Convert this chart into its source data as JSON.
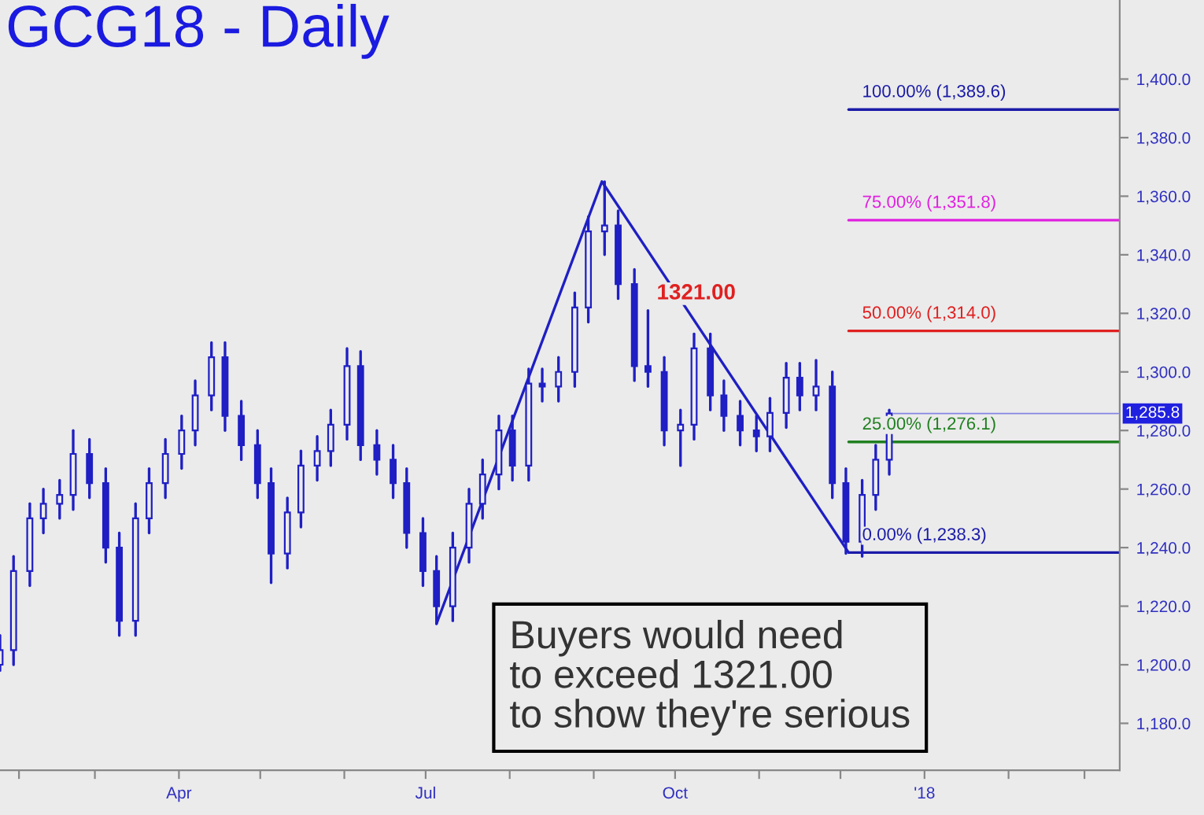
{
  "chart_data": {
    "type": "candlestick",
    "title": "GCG18 - Daily",
    "x": [
      "2017-01-25",
      "2017-01-30",
      "2017-02-05",
      "2017-02-10",
      "2017-02-16",
      "2017-02-21",
      "2017-02-27",
      "2017-03-05",
      "2017-03-10",
      "2017-03-16",
      "2017-03-21",
      "2017-03-27",
      "2017-04-02",
      "2017-04-07",
      "2017-04-13",
      "2017-04-18",
      "2017-04-24",
      "2017-04-30",
      "2017-05-05",
      "2017-05-11",
      "2017-05-16",
      "2017-05-22",
      "2017-05-27",
      "2017-06-02",
      "2017-06-07",
      "2017-06-13",
      "2017-06-19",
      "2017-06-24",
      "2017-06-30",
      "2017-07-05",
      "2017-07-11",
      "2017-07-17",
      "2017-07-22",
      "2017-07-28",
      "2017-08-02",
      "2017-08-08",
      "2017-08-13",
      "2017-08-19",
      "2017-08-25",
      "2017-08-30",
      "2017-09-05",
      "2017-09-10",
      "2017-09-16",
      "2017-09-21",
      "2017-09-27",
      "2017-10-03",
      "2017-10-08",
      "2017-10-14",
      "2017-10-19",
      "2017-10-25",
      "2017-10-31",
      "2017-11-05",
      "2017-11-11",
      "2017-11-16",
      "2017-11-22",
      "2017-11-28",
      "2017-12-03",
      "2017-12-09",
      "2017-12-14",
      "2017-12-19"
    ],
    "ohlc": [
      [
        1200,
        1210,
        1198,
        1205
      ],
      [
        1205,
        1237,
        1200,
        1232
      ],
      [
        1232,
        1255,
        1227,
        1250
      ],
      [
        1250,
        1260,
        1245,
        1255
      ],
      [
        1255,
        1263,
        1250,
        1258
      ],
      [
        1258,
        1280,
        1253,
        1272
      ],
      [
        1272,
        1277,
        1257,
        1262
      ],
      [
        1262,
        1267,
        1235,
        1240
      ],
      [
        1240,
        1245,
        1210,
        1215
      ],
      [
        1215,
        1255,
        1210,
        1250
      ],
      [
        1250,
        1267,
        1245,
        1262
      ],
      [
        1262,
        1277,
        1257,
        1272
      ],
      [
        1272,
        1285,
        1267,
        1280
      ],
      [
        1280,
        1297,
        1275,
        1292
      ],
      [
        1292,
        1310,
        1287,
        1305
      ],
      [
        1305,
        1310,
        1280,
        1285
      ],
      [
        1285,
        1290,
        1270,
        1275
      ],
      [
        1275,
        1280,
        1257,
        1262
      ],
      [
        1262,
        1267,
        1228,
        1238
      ],
      [
        1238,
        1257,
        1233,
        1252
      ],
      [
        1252,
        1273,
        1247,
        1268
      ],
      [
        1268,
        1278,
        1263,
        1273
      ],
      [
        1273,
        1287,
        1268,
        1282
      ],
      [
        1282,
        1308,
        1277,
        1302
      ],
      [
        1302,
        1307,
        1270,
        1275
      ],
      [
        1275,
        1280,
        1265,
        1270
      ],
      [
        1270,
        1275,
        1257,
        1262
      ],
      [
        1262,
        1267,
        1240,
        1245
      ],
      [
        1245,
        1250,
        1227,
        1232
      ],
      [
        1232,
        1237,
        1214,
        1220
      ],
      [
        1220,
        1245,
        1215,
        1240
      ],
      [
        1240,
        1260,
        1235,
        1255
      ],
      [
        1255,
        1270,
        1250,
        1265
      ],
      [
        1265,
        1285,
        1260,
        1280
      ],
      [
        1280,
        1285,
        1263,
        1268
      ],
      [
        1268,
        1301,
        1263,
        1296
      ],
      [
        1296,
        1301,
        1290,
        1295
      ],
      [
        1295,
        1305,
        1290,
        1300
      ],
      [
        1300,
        1327,
        1295,
        1322
      ],
      [
        1322,
        1353,
        1317,
        1348
      ],
      [
        1348,
        1365,
        1340,
        1350
      ],
      [
        1350,
        1355,
        1325,
        1330
      ],
      [
        1330,
        1335,
        1297,
        1302
      ],
      [
        1302,
        1321,
        1295,
        1300
      ],
      [
        1300,
        1305,
        1275,
        1280
      ],
      [
        1280,
        1287,
        1268,
        1282
      ],
      [
        1282,
        1313,
        1277,
        1308
      ],
      [
        1308,
        1313,
        1287,
        1292
      ],
      [
        1292,
        1297,
        1280,
        1285
      ],
      [
        1285,
        1290,
        1275,
        1280
      ],
      [
        1280,
        1285,
        1273,
        1278
      ],
      [
        1278,
        1291,
        1273,
        1286
      ],
      [
        1286,
        1303,
        1281,
        1298
      ],
      [
        1298,
        1303,
        1287,
        1292
      ],
      [
        1292,
        1304,
        1287,
        1295
      ],
      [
        1295,
        1300,
        1257,
        1262
      ],
      [
        1262,
        1267,
        1238,
        1242
      ],
      [
        1242,
        1263,
        1237,
        1258
      ],
      [
        1258,
        1275,
        1253,
        1270
      ],
      [
        1270,
        1287,
        1265,
        1285.8
      ]
    ],
    "color": "#1f1fc4",
    "series": [
      {
        "type": "line",
        "color": "#1f1fc4",
        "x": [
          "2017-07-05",
          "2017-09-04",
          "2017-12-04"
        ],
        "values": [
          1214,
          1365,
          1238.3
        ]
      }
    ],
    "ref_lines": [
      {
        "axis": "y",
        "value": 1389.6,
        "label": "100.00% (1,389.6)",
        "color": "#1a1aa8"
      },
      {
        "axis": "y",
        "value": 1351.8,
        "label": "75.00% (1,351.8)",
        "color": "#e020e0"
      },
      {
        "axis": "y",
        "value": 1314.0,
        "label": "50.00% (1,314.0)",
        "color": "#e02020"
      },
      {
        "axis": "y",
        "value": 1276.1,
        "label": "25.00% (1,276.1)",
        "color": "#208020"
      },
      {
        "axis": "y",
        "value": 1238.3,
        "label": "0.00% (1,238.3)",
        "color": "#1a1aa8"
      }
    ],
    "annotations": [
      {
        "text": "1321.00",
        "x": "2017-09-21",
        "y": 1321
      },
      {
        "text": "1,285.8",
        "x": "2017-12-19",
        "y": 1285.8
      },
      "Buyers would need\nto exceed 1321.00\nto show they're serious"
    ],
    "xlim": [
      "2017-01-25",
      "2018-03-14"
    ],
    "xticks": [
      {
        "value": "2017-02-01",
        "label": null
      },
      {
        "value": "2017-03-01",
        "label": null
      },
      {
        "value": "2017-04-01",
        "label": "Apr"
      },
      {
        "value": "2017-05-01",
        "label": null
      },
      {
        "value": "2017-06-01",
        "label": null
      },
      {
        "value": "2017-07-01",
        "label": "Jul"
      },
      {
        "value": "2017-08-01",
        "label": null
      },
      {
        "value": "2017-09-01",
        "label": null
      },
      {
        "value": "2017-10-01",
        "label": "Oct"
      },
      {
        "value": "2017-11-01",
        "label": null
      },
      {
        "value": "2017-12-01",
        "label": null
      },
      {
        "value": "2018-01-01",
        "label": "'18"
      },
      {
        "value": "2018-02-01",
        "label": null
      },
      {
        "value": "2018-03-01",
        "label": null
      }
    ],
    "ylim": [
      1164,
      1427
    ],
    "yticks": [
      {
        "value": 1180,
        "label": "1,180.0"
      },
      {
        "value": 1200,
        "label": "1,200.0"
      },
      {
        "value": 1220,
        "label": "1,220.0"
      },
      {
        "value": 1240,
        "label": "1,240.0"
      },
      {
        "value": 1260,
        "label": "1,260.0"
      },
      {
        "value": 1280,
        "label": "1,280.0"
      },
      {
        "value": 1300,
        "label": "1,300.0"
      },
      {
        "value": 1320,
        "label": "1,320.0"
      },
      {
        "value": 1340,
        "label": "1,340.0"
      },
      {
        "value": 1360,
        "label": "1,360.0"
      },
      {
        "value": 1380,
        "label": "1,380.0"
      },
      {
        "value": 1400,
        "label": "1,400.0"
      }
    ],
    "grid": false,
    "legend": false
  }
}
